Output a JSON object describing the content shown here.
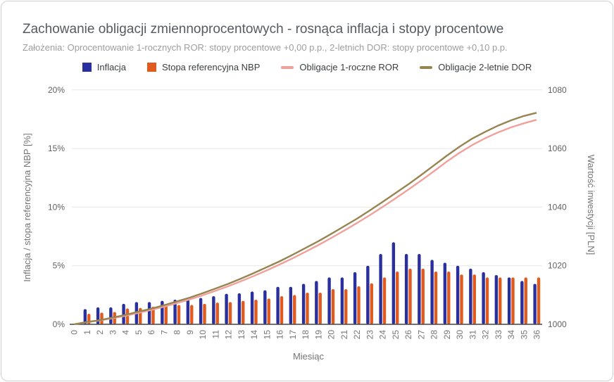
{
  "card": {
    "title": "Zachowanie obligacji zmiennoprocentowych - rosnąca inflacja i stopy procentowe",
    "subtitle": "Założenia: Oprocentowanie 1-rocznych ROR: stopy procentowe +0,00 p.p., 2-letnich DOR: stopy procentowe +0,10 p.p."
  },
  "colors": {
    "inflation_bar": "#2A2F9E",
    "nbp_rate_bar": "#E15A1E",
    "ror_line": "#F0A19C",
    "dor_line": "#968551",
    "gridline": "#E6E6E6",
    "axis_line": "#424242",
    "tick_text": "#616161",
    "x_tick_text": "#757575"
  },
  "chart_data": {
    "type": "combo-bar-line",
    "title": "Zachowanie obligacji zmiennoprocentowych - rosnąca inflacja i stopy procentowe",
    "subtitle": "Założenia: Oprocentowanie 1-rocznych ROR: stopy procentowe +0,00 p.p., 2-letnich DOR: stopy procentowe +0,10 p.p.",
    "grid": true,
    "legend_position": "top",
    "categories": [
      0,
      1,
      2,
      3,
      4,
      5,
      6,
      7,
      8,
      9,
      10,
      11,
      12,
      13,
      14,
      15,
      16,
      17,
      18,
      19,
      20,
      21,
      22,
      23,
      24,
      25,
      26,
      27,
      28,
      29,
      30,
      31,
      32,
      33,
      34,
      35,
      36
    ],
    "series": [
      {
        "name": "Inflacja",
        "type": "bar",
        "axis": "left",
        "unit": "%",
        "values": [
          0,
          1.3,
          1.45,
          1.45,
          1.75,
          1.9,
          1.9,
          2.0,
          2.1,
          2.1,
          2.25,
          2.4,
          2.6,
          2.65,
          2.8,
          2.9,
          3.2,
          3.2,
          3.45,
          3.7,
          4.0,
          4.0,
          4.45,
          5.0,
          6.0,
          7.0,
          6.0,
          6.0,
          5.5,
          5.25,
          5.0,
          4.75,
          4.45,
          4.2,
          4.0,
          3.7,
          3.45
        ]
      },
      {
        "name": "Stopa referencyjna NBP",
        "type": "bar",
        "axis": "left",
        "unit": "%",
        "values": [
          0,
          0.9,
          1.0,
          1.05,
          1.35,
          1.4,
          1.5,
          1.6,
          1.65,
          1.65,
          1.75,
          1.85,
          1.9,
          2.0,
          2.1,
          2.2,
          2.4,
          2.5,
          2.7,
          2.7,
          3.0,
          3.0,
          3.25,
          3.5,
          4.0,
          4.5,
          4.75,
          4.75,
          4.5,
          4.5,
          4.25,
          4.25,
          4.0,
          4.0,
          4.0,
          4.0,
          4.0
        ]
      },
      {
        "name": "Obligacje 1-roczne ROR",
        "type": "line",
        "axis": "right",
        "unit": "PLN",
        "values": [
          1000,
          1000.7,
          1001.3,
          1002.1,
          1002.9,
          1003.9,
          1004.9,
          1006.0,
          1007.2,
          1008.5,
          1009.9,
          1011.4,
          1013.0,
          1014.7,
          1016.5,
          1018.4,
          1020.4,
          1022.5,
          1024.7,
          1027.0,
          1029.4,
          1031.9,
          1034.5,
          1037.2,
          1040.0,
          1042.9,
          1045.9,
          1049.0,
          1052.2,
          1055.5,
          1058.5,
          1061.2,
          1063.5,
          1065.5,
          1067.2,
          1068.6,
          1069.8
        ]
      },
      {
        "name": "Obligacje 2-letnie DOR",
        "type": "line",
        "axis": "right",
        "unit": "PLN",
        "values": [
          1000,
          1000.8,
          1001.4,
          1002.3,
          1003.2,
          1004.3,
          1005.3,
          1006.5,
          1007.8,
          1009.1,
          1010.6,
          1012.2,
          1013.8,
          1015.6,
          1017.5,
          1019.5,
          1021.5,
          1023.7,
          1026.0,
          1028.3,
          1030.8,
          1033.4,
          1036.0,
          1038.8,
          1041.7,
          1044.7,
          1047.7,
          1050.9,
          1054.2,
          1057.5,
          1060.6,
          1063.4,
          1065.7,
          1067.8,
          1069.6,
          1071.1,
          1072.2
        ]
      }
    ],
    "left_axis": {
      "title": "Inflacja / stopa referencyjna NBP [%]",
      "ticks": [
        "0%",
        "5%",
        "10%",
        "15%",
        "20%"
      ],
      "range": [
        0,
        20
      ]
    },
    "right_axis": {
      "title": "Wartość inwestycji [PLN]",
      "ticks": [
        "1000",
        "1020",
        "1040",
        "1060",
        "1080"
      ],
      "range": [
        1000,
        1080
      ]
    },
    "x_axis": {
      "title": "Miesiąc",
      "range": [
        0,
        36
      ]
    }
  }
}
